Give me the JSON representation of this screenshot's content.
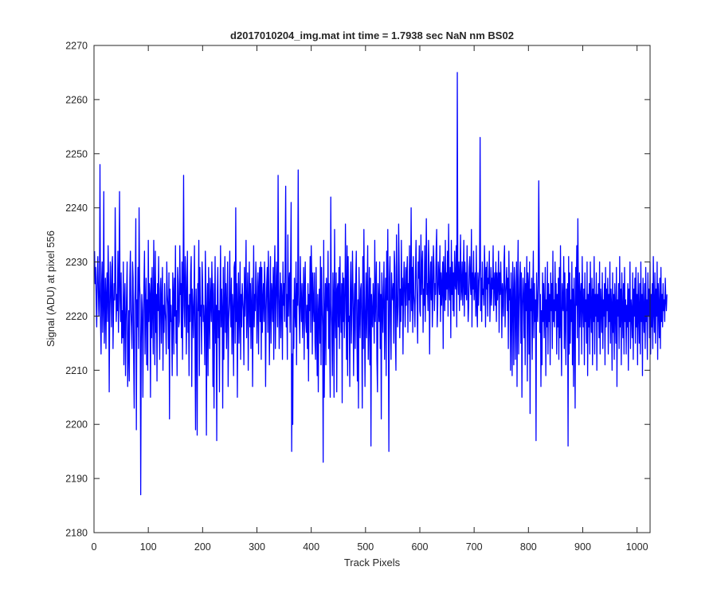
{
  "chart_data": {
    "type": "line",
    "title": "d2017010204_img.mat int time = 1.7938 sec  NaN nm BS02",
    "xlabel": "Track Pixels",
    "ylabel": "Signal (ADU) at pixel 556",
    "xlim": [
      0,
      1024
    ],
    "ylim": [
      2180,
      2270
    ],
    "xticks": [
      "0",
      "100",
      "200",
      "300",
      "400",
      "500",
      "600",
      "700",
      "800",
      "900",
      "1000"
    ],
    "yticks": [
      "2180",
      "2190",
      "2200",
      "2210",
      "2220",
      "2230",
      "2240",
      "2250",
      "2260",
      "2270"
    ],
    "grid": false,
    "series": [
      {
        "color": "#0000ff",
        "x_start": 1,
        "x_step": 1,
        "values": [
          2232,
          2226,
          2229,
          2223,
          2218,
          2227,
          2231,
          2225,
          2220,
          2224,
          2248,
          2219,
          2213,
          2226,
          2230,
          2217,
          2222,
          2243,
          2215,
          2221,
          2227,
          2214,
          2224,
          2228,
          2219,
          2233,
          2226,
          2206,
          2222,
          2230,
          2224,
          2218,
          2229,
          2231,
          2214,
          2221,
          2226,
          2223,
          2240,
          2228,
          2219,
          2224,
          2221,
          2232,
          2217,
          2226,
          2243,
          2223,
          2219,
          2228,
          2215,
          2221,
          2216,
          2230,
          2211,
          2222,
          2226,
          2209,
          2219,
          2224,
          2230,
          2207,
          2213,
          2221,
          2208,
          2227,
          2232,
          2221,
          2218,
          2214,
          2230,
          2227,
          2212,
          2203,
          2222,
          2226,
          2238,
          2199,
          2223,
          2218,
          2229,
          2214,
          2240,
          2226,
          2223,
          2187,
          2215,
          2224,
          2221,
          2205,
          2219,
          2226,
          2232,
          2213,
          2222,
          2227,
          2211,
          2223,
          2210,
          2234,
          2219,
          2226,
          2224,
          2205,
          2227,
          2216,
          2229,
          2221,
          2213,
          2234,
          2224,
          2211,
          2232,
          2217,
          2224,
          2208,
          2226,
          2221,
          2231,
          2220,
          2212,
          2225,
          2227,
          2215,
          2223,
          2229,
          2210,
          2222,
          2217,
          2226,
          2221,
          2219,
          2213,
          2230,
          2224,
          2222,
          2214,
          2228,
          2201,
          2225,
          2219,
          2222,
          2217,
          2209,
          2228,
          2224,
          2213,
          2227,
          2220,
          2233,
          2215,
          2221,
          2209,
          2229,
          2226,
          2218,
          2219,
          2233,
          2224,
          2226,
          2216,
          2230,
          2212,
          2225,
          2246,
          2222,
          2218,
          2231,
          2227,
          2213,
          2224,
          2232,
          2217,
          2222,
          2209,
          2224,
          2219,
          2228,
          2231,
          2207,
          2225,
          2222,
          2216,
          2222,
          2233,
          2215,
          2199,
          2225,
          2220,
          2198,
          2226,
          2221,
          2234,
          2209,
          2229,
          2220,
          2222,
          2213,
          2230,
          2226,
          2219,
          2222,
          2218,
          2211,
          2232,
          2225,
          2198,
          2221,
          2226,
          2209,
          2229,
          2220,
          2214,
          2227,
          2223,
          2219,
          2230,
          2224,
          2207,
          2226,
          2203,
          2219,
          2231,
          2215,
          2222,
          2197,
          2224,
          2229,
          2216,
          2221,
          2206,
          2222,
          2233,
          2218,
          2225,
          2221,
          2203,
          2229,
          2212,
          2222,
          2231,
          2217,
          2226,
          2214,
          2222,
          2230,
          2207,
          2219,
          2223,
          2232,
          2222,
          2218,
          2227,
          2213,
          2224,
          2221,
          2209,
          2229,
          2230,
          2215,
          2240,
          2219,
          2226,
          2205,
          2222,
          2228,
          2215,
          2221,
          2230,
          2212,
          2224,
          2218,
          2226,
          2223,
          2221,
          2211,
          2229,
          2220,
          2225,
          2234,
          2216,
          2222,
          2228,
          2210,
          2223,
          2230,
          2218,
          2226,
          2214,
          2222,
          2227,
          2207,
          2220,
          2233,
          2218,
          2224,
          2221,
          2230,
          2226,
          2215,
          2222,
          2228,
          2213,
          2225,
          2229,
          2219,
          2230,
          2212,
          2229,
          2217,
          2223,
          2226,
          2219,
          2230,
          2225,
          2207,
          2221,
          2226,
          2229,
          2217,
          2232,
          2224,
          2211,
          2222,
          2231,
          2215,
          2226,
          2224,
          2219,
          2229,
          2212,
          2227,
          2233,
          2214,
          2223,
          2230,
          2224,
          2218,
          2246,
          2225,
          2214,
          2222,
          2228,
          2216,
          2226,
          2223,
          2212,
          2230,
          2222,
          2226,
          2219,
          2231,
          2244,
          2218,
          2224,
          2212,
          2235,
          2220,
          2226,
          2228,
          2217,
          2229,
          2241,
          2195,
          2213,
          2200,
          2223,
          2214,
          2227,
          2221,
          2218,
          2230,
          2211,
          2226,
          2222,
          2247,
          2224,
          2220,
          2215,
          2231,
          2223,
          2219,
          2226,
          2216,
          2222,
          2229,
          2212,
          2225,
          2230,
          2219,
          2217,
          2222,
          2214,
          2226,
          2208,
          2224,
          2221,
          2231,
          2217,
          2233,
          2227,
          2213,
          2228,
          2222,
          2219,
          2228,
          2215,
          2212,
          2229,
          2219,
          2209,
          2224,
          2206,
          2221,
          2225,
          2215,
          2231,
          2211,
          2229,
          2222,
          2218,
          2193,
          2234,
          2205,
          2220,
          2226,
          2211,
          2227,
          2223,
          2221,
          2232,
          2214,
          2226,
          2215,
          2205,
          2242,
          2222,
          2218,
          2209,
          2228,
          2223,
          2205,
          2236,
          2221,
          2216,
          2228,
          2206,
          2225,
          2226,
          2218,
          2229,
          2214,
          2231,
          2222,
          2217,
          2226,
          2204,
          2228,
          2219,
          2227,
          2216,
          2221,
          2237,
          2225,
          2212,
          2233,
          2209,
          2231,
          2219,
          2220,
          2207,
          2225,
          2230,
          2215,
          2222,
          2232,
          2224,
          2209,
          2221,
          2226,
          2214,
          2227,
          2232,
          2218,
          2208,
          2223,
          2203,
          2229,
          2221,
          2216,
          2225,
          2226,
          2218,
          2203,
          2231,
          2214,
          2236,
          2222,
          2207,
          2221,
          2228,
          2216,
          2224,
          2233,
          2212,
          2219,
          2229,
          2211,
          2227,
          2196,
          2224,
          2220,
          2218,
          2226,
          2222,
          2215,
          2234,
          2219,
          2224,
          2230,
          2212,
          2206,
          2226,
          2222,
          2219,
          2230,
          2214,
          2224,
          2201,
          2228,
          2222,
          2217,
          2225,
          2230,
          2212,
          2221,
          2227,
          2209,
          2232,
          2223,
          2236,
          2218,
          2195,
          2227,
          2231,
          2219,
          2212,
          2228,
          2224,
          2223,
          2226,
          2215,
          2232,
          2229,
          2216,
          2210,
          2235,
          2224,
          2218,
          2222,
          2237,
          2229,
          2216,
          2225,
          2219,
          2234,
          2222,
          2227,
          2213,
          2225,
          2230,
          2224,
          2218,
          2229,
          2222,
          2228,
          2231,
          2217,
          2226,
          2223,
          2233,
          2219,
          2225,
          2240,
          2221,
          2229,
          2217,
          2231,
          2224,
          2222,
          2218,
          2228,
          2234,
          2226,
          2222,
          2215,
          2230,
          2227,
          2233,
          2221,
          2220,
          2235,
          2224,
          2229,
          2232,
          2217,
          2225,
          2222,
          2233,
          2219,
          2228,
          2238,
          2224,
          2226,
          2221,
          2234,
          2229,
          2213,
          2226,
          2230,
          2223,
          2231,
          2218,
          2224,
          2233,
          2229,
          2221,
          2226,
          2224,
          2232,
          2236,
          2218,
          2222,
          2230,
          2227,
          2224,
          2233,
          2219,
          2228,
          2222,
          2226,
          2230,
          2214,
          2231,
          2226,
          2221,
          2234,
          2223,
          2228,
          2225,
          2232,
          2220,
          2237,
          2226,
          2223,
          2229,
          2216,
          2234,
          2224,
          2230,
          2221,
          2228,
          2220,
          2232,
          2226,
          2225,
          2233,
          2218,
          2265,
          2227,
          2224,
          2230,
          2221,
          2228,
          2235,
          2223,
          2225,
          2230,
          2222,
          2227,
          2234,
          2220,
          2230,
          2224,
          2228,
          2223,
          2233,
          2226,
          2219,
          2222,
          2229,
          2231,
          2226,
          2224,
          2236,
          2218,
          2228,
          2225,
          2232,
          2223,
          2226,
          2228,
          2220,
          2233,
          2222,
          2218,
          2228,
          2222,
          2226,
          2229,
          2253,
          2221,
          2227,
          2219,
          2230,
          2224,
          2225,
          2222,
          2233,
          2228,
          2218,
          2229,
          2225,
          2230,
          2220,
          2227,
          2226,
          2232,
          2219,
          2224,
          2229,
          2222,
          2227,
          2225,
          2233,
          2221,
          2226,
          2228,
          2222,
          2230,
          2219,
          2228,
          2223,
          2226,
          2232,
          2217,
          2228,
          2224,
          2230,
          2225,
          2216,
          2226,
          2224,
          2220,
          2230,
          2233,
          2218,
          2224,
          2226,
          2229,
          2221,
          2227,
          2214,
          2232,
          2223,
          2225,
          2210,
          2228,
          2222,
          2209,
          2230,
          2224,
          2211,
          2229,
          2226,
          2212,
          2222,
          2230,
          2207,
          2226,
          2234,
          2213,
          2221,
          2227,
          2230,
          2215,
          2228,
          2205,
          2222,
          2227,
          2223,
          2216,
          2229,
          2211,
          2226,
          2221,
          2231,
          2208,
          2228,
          2226,
          2213,
          2230,
          2202,
          2225,
          2221,
          2227,
          2212,
          2224,
          2232,
          2216,
          2226,
          2219,
          2223,
          2197,
          2228,
          2222,
          2219,
          2226,
          2245,
          2230,
          2217,
          2224,
          2207,
          2221,
          2211,
          2228,
          2219,
          2226,
          2216,
          2222,
          2229,
          2209,
          2223,
          2218,
          2230,
          2213,
          2226,
          2219,
          2224,
          2211,
          2228,
          2221,
          2226,
          2214,
          2232,
          2219,
          2223,
          2218,
          2230,
          2221,
          2226,
          2213,
          2224,
          2218,
          2227,
          2212,
          2229,
          2216,
          2233,
          2219,
          2209,
          2226,
          2222,
          2221,
          2231,
          2214,
          2228,
          2219,
          2211,
          2225,
          2221,
          2226,
          2196,
          2231,
          2213,
          2228,
          2215,
          2223,
          2219,
          2230,
          2211,
          2225,
          2207,
          2227,
          2221,
          2203,
          2229,
          2222,
          2233,
          2216,
          2238,
          2225,
          2211,
          2228,
          2218,
          2224,
          2226,
          2213,
          2231,
          2222,
          2218,
          2225,
          2211,
          2228,
          2219,
          2223,
          2215,
          2230,
          2209,
          2224,
          2218,
          2226,
          2213,
          2230,
          2221,
          2217,
          2227,
          2211,
          2225,
          2219,
          2231,
          2213,
          2224,
          2220,
          2228,
          2210,
          2224,
          2219,
          2226,
          2216,
          2230,
          2213,
          2225,
          2222,
          2217,
          2228,
          2214,
          2223,
          2220,
          2226,
          2211,
          2229,
          2218,
          2225,
          2221,
          2227,
          2213,
          2224,
          2219,
          2230,
          2215,
          2225,
          2222,
          2210,
          2228,
          2217,
          2224,
          2212,
          2226,
          2221,
          2215,
          2229,
          2207,
          2223,
          2220,
          2226,
          2214,
          2231,
          2218,
          2225,
          2211,
          2228,
          2221,
          2216,
          2226,
          2213,
          2229,
          2219,
          2223,
          2213,
          2222,
          2218,
          2226,
          2210,
          2225,
          2219,
          2230,
          2214,
          2223,
          2221,
          2216,
          2228,
          2212,
          2225,
          2220,
          2227,
          2215,
          2229,
          2218,
          2224,
          2211,
          2228,
          2221,
          2215,
          2226,
          2213,
          2230,
          2219,
          2224,
          2209,
          2227,
          2221,
          2217,
          2226,
          2214,
          2229,
          2219,
          2223,
          2212,
          2228,
          2220,
          2225,
          2216,
          2230,
          2213,
          2224,
          2218,
          2226,
          2214,
          2231,
          2221,
          2217,
          2228,
          2215,
          2225,
          2220,
          2230,
          2212,
          2226,
          2222,
          2216,
          2227,
          2214,
          2229,
          2219,
          2224,
          2218,
          2226,
          2221,
          2223,
          2219,
          2227,
          2223,
          2221,
          2224
        ]
      }
    ]
  }
}
